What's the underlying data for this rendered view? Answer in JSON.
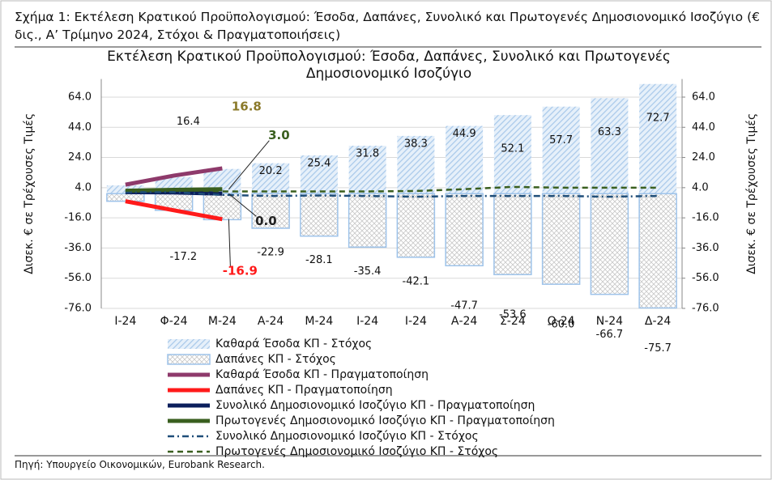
{
  "caption": "Σχήμα 1: Εκτέλεση Κρατικού Προϋπολογισμού: Έσοδα, Δαπάνες, Συνολικό και Πρωτογενές Δημοσιονομικό Ισοζύγιο (€ δις., Α’ Τρίμηνο 2024, Στόχοι & Πραγματοποιήσεις)",
  "source": "Πηγή: Υπουργείο Οικονομικών, Eurobank Research.",
  "chart_data": {
    "type": "combo",
    "title": "Εκτέλεση Κρατικού Προϋπολογισμού: Έσοδα, Δαπάνες, Συνολικό και Πρωτογενές Δημοσιονομικό Ισοζύγιο",
    "y_label": "Δισεκ. € σε Τρέχουσες Τιμές",
    "y2_label": "Δισεκ. € σε Τρέχουσες Τιμές",
    "categories": [
      "Ι-24",
      "Φ-24",
      "Μ-24",
      "Α-24",
      "Μ-24",
      "Ι-24",
      "Ι-24",
      "Α-24",
      "Σ-24",
      "Ο-24",
      "Ν-24",
      "Δ-24"
    ],
    "ylim": [
      -76,
      76
    ],
    "yticks": [
      {
        "value": -76,
        "label": "-76.0"
      },
      {
        "value": -56,
        "label": "-56.0"
      },
      {
        "value": -36,
        "label": "-36.0"
      },
      {
        "value": -16,
        "label": "-16.0"
      },
      {
        "value": 4,
        "label": "4.0"
      },
      {
        "value": 24,
        "label": "24.0"
      },
      {
        "value": 44,
        "label": "44.0"
      },
      {
        "value": 64,
        "label": "64.0"
      }
    ],
    "y2lim": [
      -76,
      76
    ],
    "y2ticks": [
      {
        "value": -76,
        "label": "-76.0"
      },
      {
        "value": -56,
        "label": "-56.0"
      },
      {
        "value": -36,
        "label": "-36.0"
      },
      {
        "value": -16,
        "label": "-16.0"
      },
      {
        "value": 4,
        "label": "4.0"
      },
      {
        "value": 24,
        "label": "24.0"
      },
      {
        "value": 44,
        "label": "44.0"
      },
      {
        "value": 64,
        "label": "64.0"
      }
    ],
    "grid": true,
    "series": [
      {
        "name": "Καθαρά Έσοδα ΚΠ - Στόχος",
        "kind": "bar",
        "color": "#b8d3ee",
        "values": [
          5.5,
          11,
          16.4,
          20.2,
          25.4,
          31.8,
          38.3,
          44.9,
          52.1,
          57.7,
          63.3,
          72.7
        ],
        "value_labels": [
          null,
          null,
          "16.4",
          "20.2",
          "25.4",
          "31.8",
          "38.3",
          "44.9",
          "52.1",
          "57.7",
          "63.3",
          "72.7"
        ]
      },
      {
        "name": "Δαπάνες ΚΠ - Στόχος",
        "kind": "bar",
        "color": "#9ec3ea",
        "values": [
          -5,
          -11,
          -17.2,
          -22.9,
          -28.1,
          -35.4,
          -42.1,
          -47.7,
          -53.6,
          -60.0,
          -66.7,
          -75.7
        ],
        "value_labels": [
          null,
          null,
          "-17.2",
          "-22.9",
          "-28.1",
          "-35.4",
          "-42.1",
          "-47.7",
          "-53.6",
          "-60.0",
          "-66.7",
          "-75.7"
        ]
      },
      {
        "name": "Καθαρά Έσοδα ΚΠ - Πραγματοποίηση",
        "kind": "line",
        "dash": "solid",
        "color": "#8e3a6b",
        "label_color": "#8b7a2a",
        "values": [
          6,
          12,
          16.8,
          null,
          null,
          null,
          null,
          null,
          null,
          null,
          null,
          null
        ],
        "value_labels": [
          null,
          null,
          "16.8",
          null,
          null,
          null,
          null,
          null,
          null,
          null,
          null,
          null
        ]
      },
      {
        "name": "Δαπάνες ΚΠ - Πραγματοποίηση",
        "kind": "line",
        "dash": "solid",
        "color": "#ff1a1a",
        "label_color": "#ff1a1a",
        "values": [
          -5,
          -11,
          -16.9,
          null,
          null,
          null,
          null,
          null,
          null,
          null,
          null,
          null
        ],
        "value_labels": [
          null,
          null,
          "-16.9",
          null,
          null,
          null,
          null,
          null,
          null,
          null,
          null,
          null
        ]
      },
      {
        "name": "Συνολικό Δημοσιονομικό Ισοζύγιο ΚΠ - Πραγματοποίηση",
        "kind": "line",
        "dash": "solid",
        "color": "#0b1f5c",
        "label_color": "#222222",
        "values": [
          1,
          0.8,
          0.0,
          null,
          null,
          null,
          null,
          null,
          null,
          null,
          null,
          null
        ],
        "value_labels": [
          null,
          null,
          "0.0",
          null,
          null,
          null,
          null,
          null,
          null,
          null,
          null,
          null
        ]
      },
      {
        "name": "Πρωτογενές Δημοσιονομικό Ισοζύγιο ΚΠ - Πραγματοποίηση",
        "kind": "line",
        "dash": "solid",
        "color": "#3a5f1f",
        "label_color": "#3a5f1f",
        "values": [
          2,
          2.6,
          3.0,
          null,
          null,
          null,
          null,
          null,
          null,
          null,
          null,
          null
        ],
        "value_labels": [
          null,
          null,
          "3.0",
          null,
          null,
          null,
          null,
          null,
          null,
          null,
          null,
          null
        ]
      },
      {
        "name": "Συνολικό Δημοσιονομικό Ισοζύγιο ΚΠ - Στόχος",
        "kind": "line",
        "dash": "dashdot",
        "color": "#1f4e79",
        "values": [
          1,
          1,
          -0.8,
          -1.5,
          -1.2,
          -1.5,
          -2,
          -1.5,
          -1.5,
          -1.5,
          -2,
          -1.5
        ]
      },
      {
        "name": "Πρωτογενές Δημοσιονομικό Ισοζύγιο ΚΠ - Στόχος",
        "kind": "line",
        "dash": "dash",
        "color": "#3a5f1f",
        "values": [
          2,
          2.5,
          1.5,
          1.5,
          1.5,
          1.5,
          1.8,
          3,
          4.5,
          4,
          4,
          4
        ]
      }
    ]
  }
}
